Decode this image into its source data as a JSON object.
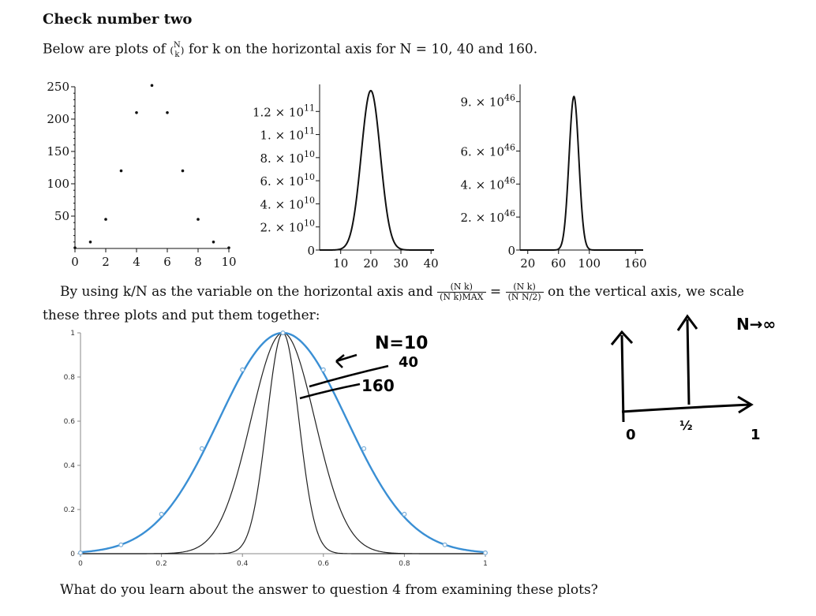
{
  "heading": "Check number two",
  "intro": {
    "pre": "Below are plots of",
    "binom_top": "N",
    "binom_bottom": "k",
    "post": "for k on the horizontal axis for N = 10, 40 and 160."
  },
  "scale_text": {
    "pre": "By using k/N as the variable on the horizontal axis and",
    "frac1_num": "(N k)",
    "frac1_den": "(N k)MAX",
    "eq": "=",
    "frac2_num": "(N k)",
    "frac2_den": "(N N/2)",
    "post": "on the vertical axis, we scale",
    "line2": "these three plots and put them together:"
  },
  "question": "What do you learn about the answer to question 4 from examining these plots?",
  "chart_data": [
    {
      "type": "scatter",
      "x": [
        0,
        1,
        2,
        3,
        4,
        5,
        6,
        7,
        8,
        9,
        10
      ],
      "y": [
        1,
        10,
        45,
        120,
        210,
        252,
        210,
        120,
        45,
        10,
        1
      ],
      "xticks": [
        "0",
        "2",
        "4",
        "6",
        "8",
        "10"
      ],
      "yticks": [
        "50",
        "100",
        "150",
        "200",
        "250"
      ],
      "xlim": [
        0,
        10
      ],
      "ylim": [
        0,
        250
      ]
    },
    {
      "type": "line",
      "N": 40,
      "peak_x": 20,
      "peak_y": 138000000000.0,
      "xticks": [
        "10",
        "20",
        "30",
        "40"
      ],
      "yticks": [
        "0",
        "2. × 10^10",
        "4. × 10^10",
        "6. × 10^10",
        "8. × 10^10",
        "1. × 10^11",
        "1.2 × 10^11"
      ],
      "xlim": [
        3,
        41
      ]
    },
    {
      "type": "line",
      "N": 160,
      "peak_x": 80,
      "peak_y": 9.3e+46,
      "xticks": [
        "20",
        "60",
        "100",
        "160"
      ],
      "yticks": [
        "0",
        "2. × 10^46",
        "4. × 10^46",
        "6. × 10^46",
        "9. × 10^46"
      ],
      "xlim": [
        10,
        170
      ]
    },
    {
      "type": "line",
      "xticks": [
        "0",
        "0.2",
        "0.4",
        "0.6",
        "0.8",
        "1"
      ],
      "yticks": [
        "0",
        "0.2",
        "0.4",
        "0.6",
        "0.8",
        "1"
      ],
      "xlim": [
        0,
        1
      ],
      "ylim": [
        0,
        1
      ],
      "series": [
        {
          "N": 10,
          "x": [
            0,
            0.1,
            0.2,
            0.3,
            0.4,
            0.5,
            0.6,
            0.7,
            0.8,
            0.9,
            1
          ],
          "y": [
            0.004,
            0.04,
            0.179,
            0.476,
            0.833,
            1,
            0.833,
            0.476,
            0.179,
            0.04,
            0.004
          ]
        },
        {
          "N": 40
        },
        {
          "N": 160
        }
      ]
    }
  ],
  "annotations": {
    "n10": "N=10",
    "n40": "40",
    "n160": "160",
    "n_infinity": "N→∞",
    "axis_zero": "0",
    "axis_half": "½",
    "axis_one": "1"
  },
  "colors": {
    "ink": "#111111",
    "blue": "#3a8fd4",
    "points": "#7aaed8"
  }
}
